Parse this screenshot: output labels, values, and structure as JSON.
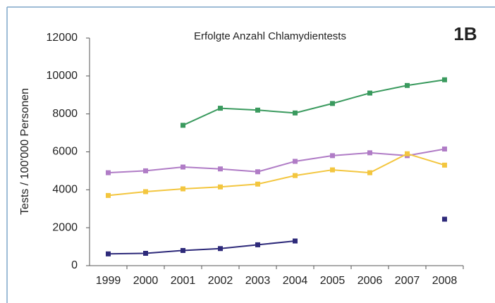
{
  "chart_data": {
    "type": "line",
    "title": "Erfolgte Anzahl Chlamydientests",
    "annotation": "1B",
    "y_label": "Tests / 100'000 Personen",
    "categories": [
      "1999",
      "2000",
      "2001",
      "2002",
      "2003",
      "2004",
      "2005",
      "2006",
      "2007",
      "2008"
    ],
    "series": [
      {
        "color": "#3a9a5e",
        "values": [
          null,
          null,
          7400,
          8300,
          8200,
          8050,
          8550,
          9100,
          9500,
          9800
        ]
      },
      {
        "color": "#b07cc6",
        "values": [
          4900,
          5000,
          5200,
          5100,
          4950,
          5500,
          5800,
          5950,
          5800,
          6150
        ]
      },
      {
        "color": "#f3c63f",
        "values": [
          3700,
          3900,
          4050,
          4150,
          4300,
          4750,
          5050,
          4900,
          5900,
          5300
        ]
      },
      {
        "color": "#2e2a7a",
        "values": [
          620,
          650,
          800,
          900,
          1100,
          1300,
          null,
          null,
          null,
          2450
        ]
      }
    ],
    "ylim": [
      0,
      12000
    ],
    "yticks": [
      0,
      2000,
      4000,
      6000,
      8000,
      10000,
      12000
    ],
    "grid": false
  }
}
